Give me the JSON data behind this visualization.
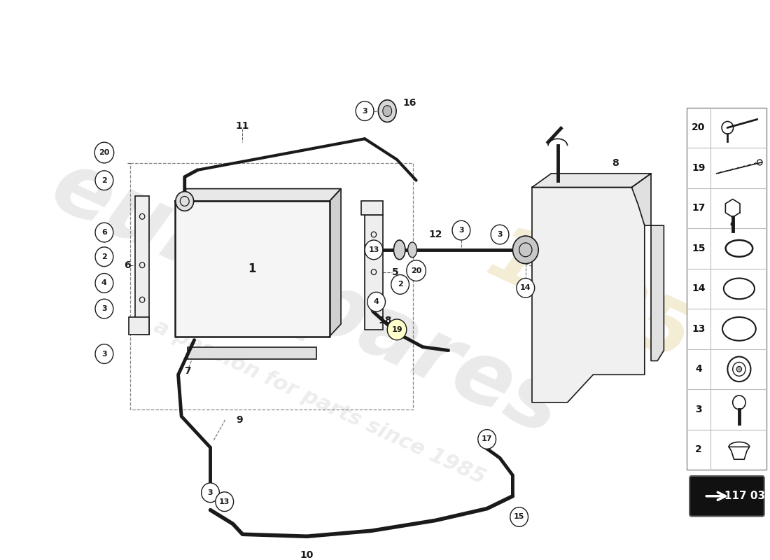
{
  "bg_color": "#ffffff",
  "line_color": "#1a1a1a",
  "wm1": "eurospares",
  "wm2": "a passion for parts since 1985",
  "wm3": "1985",
  "part_number": "117 03",
  "right_panel_items": [
    {
      "num": "20",
      "shape": "bolt_long"
    },
    {
      "num": "19",
      "shape": "rod"
    },
    {
      "num": "17",
      "shape": "bolt_hex"
    },
    {
      "num": "15",
      "shape": "oval_ring_sm"
    },
    {
      "num": "14",
      "shape": "oval_ring_md"
    },
    {
      "num": "13",
      "shape": "oval_ring_lg"
    },
    {
      "num": "4",
      "shape": "seal"
    },
    {
      "num": "3",
      "shape": "bolt_small"
    },
    {
      "num": "2",
      "shape": "cap"
    }
  ]
}
